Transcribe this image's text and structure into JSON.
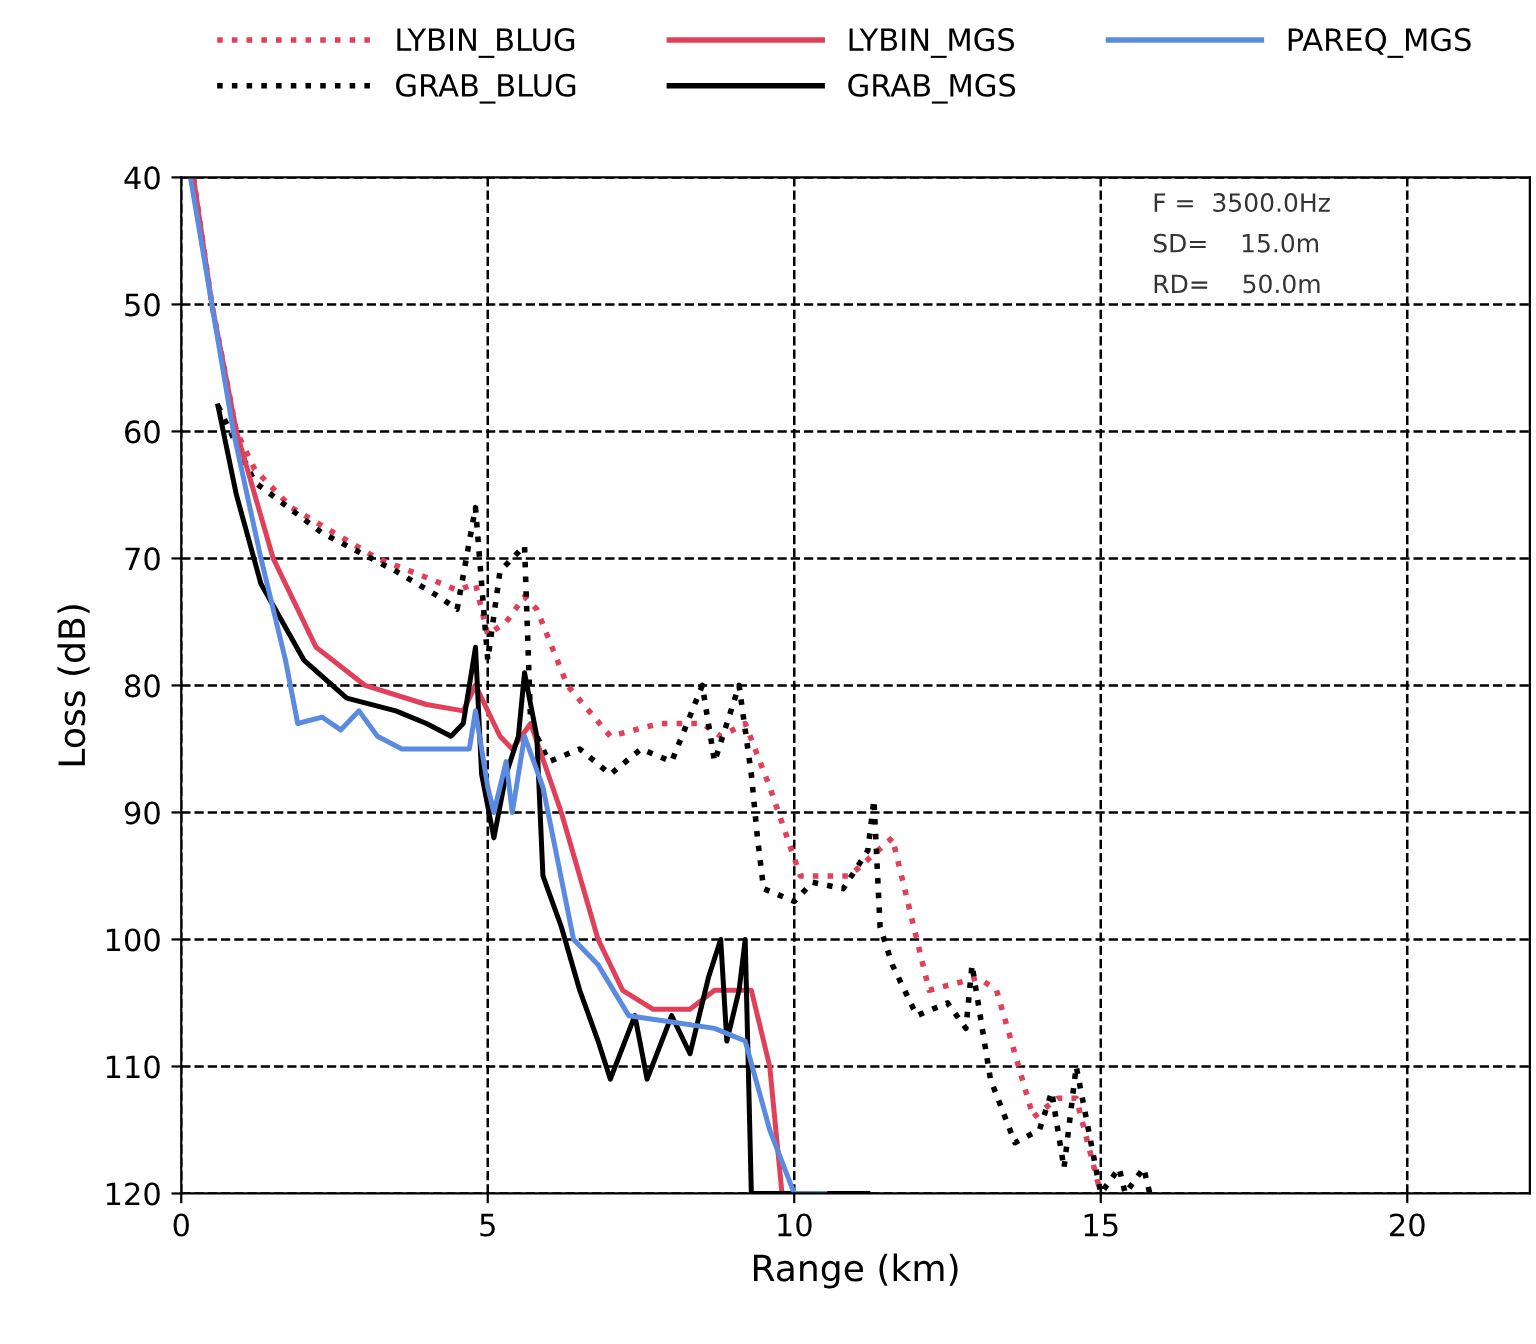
{
  "chart_data": {
    "type": "line",
    "xlabel": "Range (km)",
    "ylabel": "Loss (dB)",
    "xlim": [
      0,
      22
    ],
    "ylim": [
      120,
      40
    ],
    "xticks": [
      0,
      5,
      10,
      15,
      20
    ],
    "yticks": [
      40,
      50,
      60,
      70,
      80,
      90,
      100,
      110,
      120
    ],
    "grid": true,
    "legend": "top",
    "marker": "none",
    "annotations": [
      "F =  3500.0Hz",
      "SD=    15.0m",
      "RD=    50.0m"
    ],
    "series": [
      {
        "name": "LYBIN_BLUG",
        "color": "#e0405a",
        "line_style": "dotted",
        "x": [
          0.2,
          0.5,
          0.9,
          1.2,
          1.8,
          2.5,
          3.2,
          4.0,
          4.5,
          4.8,
          5.0,
          5.3,
          5.6,
          5.8,
          6.3,
          7.0,
          7.8,
          8.5,
          8.8,
          9.2,
          9.6,
          10.1,
          10.6,
          10.9,
          11.6,
          12.2,
          13.0,
          13.3,
          13.9,
          14.3,
          14.6,
          15.0
        ],
        "values": [
          40,
          50,
          60,
          63,
          66,
          68,
          70,
          71.5,
          72.5,
          72,
          76,
          75,
          73,
          74,
          80,
          84,
          83,
          83,
          84,
          83,
          88,
          95,
          95,
          95,
          92,
          104,
          103,
          104,
          114,
          112.5,
          112.5,
          120
        ]
      },
      {
        "name": "GRAB_BLUG",
        "color": "#000000",
        "line_style": "dotted",
        "x": [
          0.6,
          1.2,
          2.3,
          3.5,
          4.2,
          4.5,
          4.8,
          5.0,
          5.2,
          5.6,
          5.7,
          6.0,
          6.5,
          7.0,
          7.5,
          8.0,
          8.5,
          8.7,
          9.1,
          9.3,
          9.4,
          9.5,
          10.0,
          10.3,
          10.8,
          11.2,
          11.3,
          11.4,
          11.6,
          12.0,
          12.5,
          12.8,
          12.9,
          13.2,
          13.6,
          14.0,
          14.2,
          14.4,
          14.6,
          15.0,
          15.3,
          15.4,
          15.7,
          15.8
        ],
        "values": [
          58,
          64,
          68,
          71,
          73,
          74,
          66,
          78,
          71,
          69,
          83,
          86,
          85,
          87,
          85,
          86,
          80,
          86,
          80,
          87,
          92,
          96,
          97,
          95.5,
          96,
          93,
          89,
          99,
          102,
          106,
          105,
          107,
          102,
          111,
          116,
          115,
          112,
          118,
          110,
          120,
          118,
          120,
          118,
          120
        ]
      },
      {
        "name": "LYBIN_MGS",
        "color": "#e0405a",
        "line_style": "solid",
        "x": [
          0.2,
          0.5,
          0.9,
          1.5,
          2.2,
          3.0,
          4.0,
          4.6,
          4.8,
          5.2,
          5.4,
          5.7,
          6.2,
          6.8,
          7.2,
          7.7,
          8.3,
          8.7,
          9.3,
          9.6,
          9.8
        ],
        "values": [
          40,
          50,
          60,
          70,
          77,
          80,
          81.5,
          82,
          80,
          84,
          85,
          83,
          90,
          100,
          104,
          105.5,
          105.5,
          104,
          104,
          110,
          120
        ]
      },
      {
        "name": "GRAB_MGS",
        "color": "#000000",
        "line_style": "solid",
        "x": [
          0.6,
          0.9,
          1.3,
          2.0,
          2.7,
          3.5,
          4.0,
          4.4,
          4.6,
          4.8,
          4.9,
          5.1,
          5.3,
          5.5,
          5.6,
          5.8,
          5.9,
          6.2,
          6.5,
          6.8,
          7.0,
          7.4,
          7.6,
          8.0,
          8.3,
          8.6,
          8.8,
          8.9,
          9.1,
          9.2,
          9.3,
          11.2
        ],
        "values": [
          58,
          65,
          72,
          78,
          81,
          82,
          83,
          84,
          83,
          77,
          87,
          92,
          87,
          84,
          79,
          84,
          95,
          99,
          104,
          108,
          111,
          106,
          111,
          106,
          109,
          103,
          100,
          108,
          104,
          100,
          120,
          120
        ]
      },
      {
        "name": "PAREQ_MGS",
        "color": "#5b8be0",
        "line_style": "solid",
        "x": [
          0.15,
          0.5,
          0.85,
          1.3,
          1.7,
          1.9,
          2.3,
          2.6,
          2.9,
          3.2,
          3.6,
          4.7,
          4.8,
          5.0,
          5.1,
          5.3,
          5.4,
          5.6,
          5.9,
          6.4,
          6.8,
          7.3,
          8.0,
          8.7,
          9.2,
          9.6,
          10.0,
          10.5
        ],
        "values": [
          40,
          50,
          60,
          70,
          78,
          83,
          82.5,
          83.5,
          82,
          84,
          85,
          85,
          82,
          88,
          90,
          86,
          90,
          84,
          88,
          100,
          102,
          106,
          106.5,
          107,
          108,
          115,
          120,
          120
        ]
      }
    ]
  }
}
